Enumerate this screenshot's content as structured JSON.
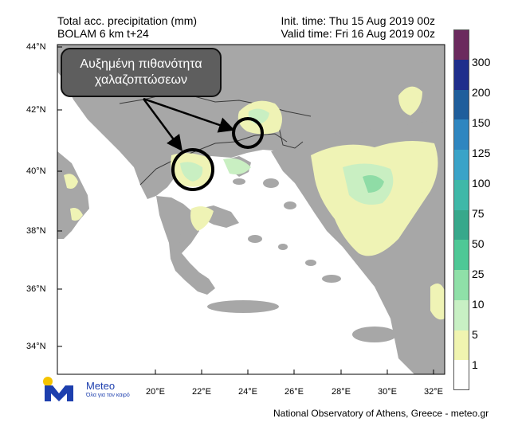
{
  "header": {
    "title_line1": "Total acc. precipitation (mm)",
    "title_line2": "BOLAM 6 km t+24",
    "init_time": "Init. time: Thu 15 Aug 2019 00z",
    "valid_time": "Valid time: Fri 16 Aug 2019 00z"
  },
  "axes": {
    "lat_labels": [
      "44°N",
      "42°N",
      "40°N",
      "38°N",
      "36°N",
      "34°N"
    ],
    "lon_labels": [
      "20°E",
      "22°E",
      "24°E",
      "26°E",
      "28°E",
      "30°E",
      "32°E"
    ]
  },
  "annotation": {
    "line1": "Αυξημένη πιθανότητα",
    "line2": "χαλαζοπτώσεων"
  },
  "colorbar": {
    "labels": [
      "300",
      "200",
      "150",
      "125",
      "100",
      "75",
      "50",
      "25",
      "10",
      "5",
      "1"
    ],
    "colors": [
      "#6b2a5e",
      "#1f2e8c",
      "#1f5e9c",
      "#2f86c0",
      "#3aa3c8",
      "#3fb8a8",
      "#37a88b",
      "#4ec896",
      "#8fe0a8",
      "#c8f0c4",
      "#f0f4b0",
      "#ffffff"
    ]
  },
  "map_colors": {
    "sea": "#ffffff",
    "land": "#a7a7a7",
    "precip_low": "#eff3b5",
    "precip_mid": "#c9efc2",
    "precip_high": "#8fdca6"
  },
  "logo": {
    "name": "Meteo",
    "tagline": "Όλα για τον καιρό"
  },
  "footer": "National Observatory of Athens, Greece - meteo.gr"
}
